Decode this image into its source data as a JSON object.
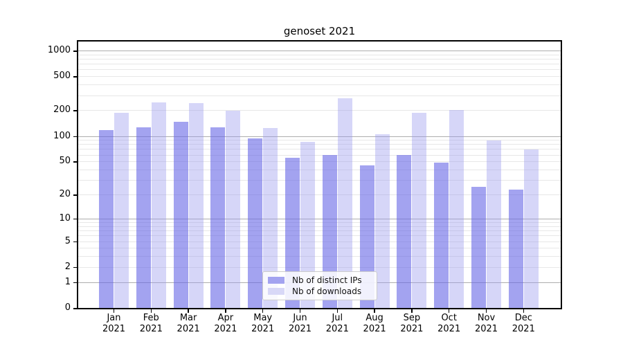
{
  "title": "genoset 2021",
  "legend": {
    "items": [
      {
        "label": "Nb of distinct IPs"
      },
      {
        "label": "Nb of downloads"
      }
    ]
  },
  "colors": {
    "bar_ips_fill": "rgba(102,102,230,0.60)",
    "bar_ips_solid": "#a3a3f0",
    "bar_downloads_fill": "rgba(153,153,238,0.40)",
    "bar_downloads_solid": "#d8d8f7",
    "grid_major": "#adadad",
    "grid_minor": "#e7e7e7",
    "spine": "#000000",
    "text": "#000000"
  },
  "chart_data": {
    "type": "bar",
    "title": "genoset 2021",
    "categories": [
      "Jan",
      "Feb",
      "Mar",
      "Apr",
      "May",
      "Jun",
      "Jul",
      "Aug",
      "Sep",
      "Oct",
      "Nov",
      "Dec"
    ],
    "category_year": "2021",
    "series": [
      {
        "name": "Nb of distinct IPs",
        "values": [
          117,
          126,
          147,
          126,
          93,
          55,
          60,
          45,
          60,
          48,
          25,
          23
        ]
      },
      {
        "name": "Nb of downloads",
        "values": [
          187,
          248,
          241,
          197,
          123,
          85,
          277,
          105,
          187,
          203,
          89,
          69
        ]
      }
    ],
    "xlabel": "",
    "ylabel": "",
    "yscale": "symlog-log1p",
    "yticks": [
      0,
      1,
      2,
      5,
      10,
      20,
      50,
      100,
      200,
      500,
      1000
    ],
    "ytick_majors": [
      1,
      10,
      100,
      1000
    ],
    "ytick_minors": [
      3,
      4,
      6,
      7,
      8,
      9,
      30,
      40,
      60,
      70,
      80,
      90,
      300,
      400,
      600,
      700,
      800,
      900
    ],
    "ylim": [
      0,
      1280
    ],
    "grid": true,
    "legend_position": "lower-center"
  }
}
